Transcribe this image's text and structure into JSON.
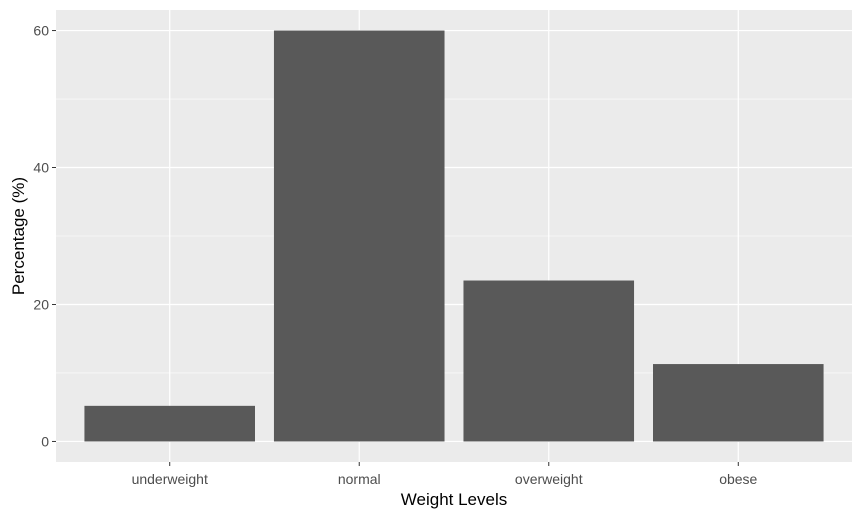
{
  "chart_data": {
    "type": "bar",
    "categories": [
      "underweight",
      "normal",
      "overweight",
      "obese"
    ],
    "values": [
      5.2,
      60.0,
      23.5,
      11.3
    ],
    "xlabel": "Weight Levels",
    "ylabel": "Percentage (%)",
    "ylim": [
      -3.0,
      63.0
    ],
    "yticks": [
      0,
      20,
      40,
      60
    ],
    "grid": true,
    "legend": "none",
    "colors": {
      "panel": "#ebebeb",
      "grid_major": "#ffffff",
      "bar": "#595959",
      "tick_text": "#4d4d4d",
      "tick_mark": "#333333"
    }
  }
}
